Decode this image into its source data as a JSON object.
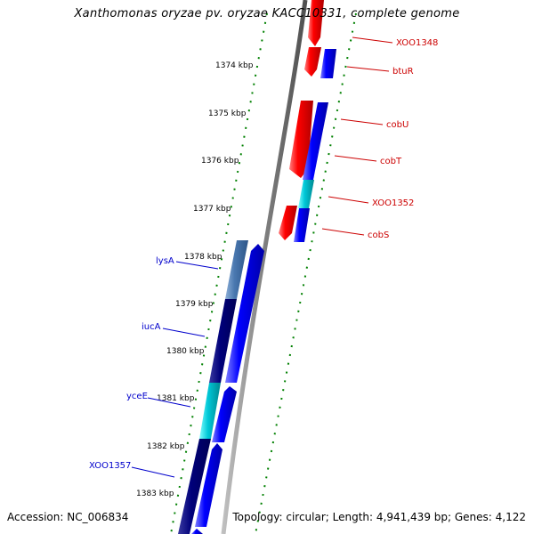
{
  "title": "Xanthomonas oryzae pv. oryzae KACC10331, complete genome",
  "footer": {
    "accession": "Accession: NC_006834",
    "summary": "Topology: circular; Length: 4,941,439 bp; Genes: 4,122"
  },
  "colors": {
    "forward_gene": "#0000ff",
    "reverse_gene": "#ff0000",
    "cyan_gene": "#00bfcf",
    "dark_gene": "#00007a",
    "steel_gene": "#4a78b0",
    "backbone": "#808080",
    "tick": "#008000",
    "forward_label": "#0000cc",
    "reverse_label": "#cc0000"
  },
  "tick_labels": [
    "1374 kbp",
    "1375 kbp",
    "1376 kbp",
    "1377 kbp",
    "1378 kbp",
    "1379 kbp",
    "1380 kbp",
    "1381 kbp",
    "1382 kbp",
    "1383 kbp"
  ],
  "genes_right": [
    "XOO1348",
    "btuR",
    "cobU",
    "cobT",
    "XOO1352",
    "cobS"
  ],
  "genes_left": [
    "lysA",
    "iucA",
    "yceE",
    "XOO1357"
  ]
}
